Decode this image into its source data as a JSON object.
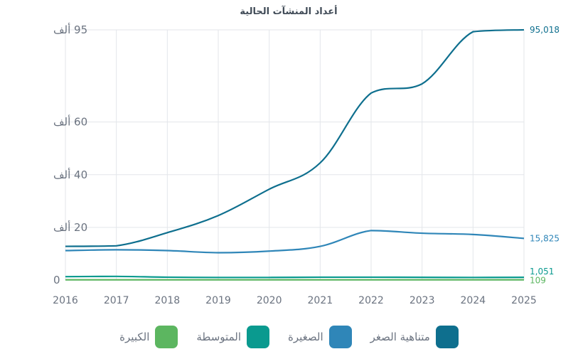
{
  "chart_data": {
    "type": "line",
    "title": "أعداد المنشآت الحالية",
    "x": [
      2016,
      2017,
      2018,
      2019,
      2020,
      2021,
      2022,
      2023,
      2024,
      2025
    ],
    "ylim": [
      0,
      95
    ],
    "yticks": [
      {
        "value": 0,
        "label": "0"
      },
      {
        "value": 20,
        "label": "20 ألف"
      },
      {
        "value": 40,
        "label": "40 ألف"
      },
      {
        "value": 60,
        "label": "60 ألف"
      },
      {
        "value": 95,
        "label": "95 ألف"
      }
    ],
    "grid": true,
    "legend_position": "bottom",
    "series": [
      {
        "name": "متناهية الصغر",
        "color": "#0e6f8e",
        "values": [
          12.8,
          13.0,
          18.0,
          24.5,
          34.5,
          44.5,
          71.0,
          74.5,
          94.3,
          95.018
        ],
        "end_label": "95,018"
      },
      {
        "name": "الصغيرة",
        "color": "#2f86b8",
        "values": [
          11.2,
          11.5,
          11.2,
          10.4,
          11.0,
          12.8,
          18.8,
          17.8,
          17.3,
          15.825
        ],
        "end_label": "15,825"
      },
      {
        "name": "المتوسطة",
        "color": "#0a9a8f",
        "values": [
          1.3,
          1.4,
          1.1,
          1.0,
          1.0,
          1.1,
          1.1,
          1.05,
          1.0,
          1.051
        ],
        "end_label": "1,051"
      },
      {
        "name": "الكبيرة",
        "color": "#5cb660",
        "values": [
          0.1,
          0.1,
          0.1,
          0.1,
          0.1,
          0.1,
          0.1,
          0.1,
          0.1,
          0.109
        ],
        "end_label": "109"
      }
    ]
  }
}
